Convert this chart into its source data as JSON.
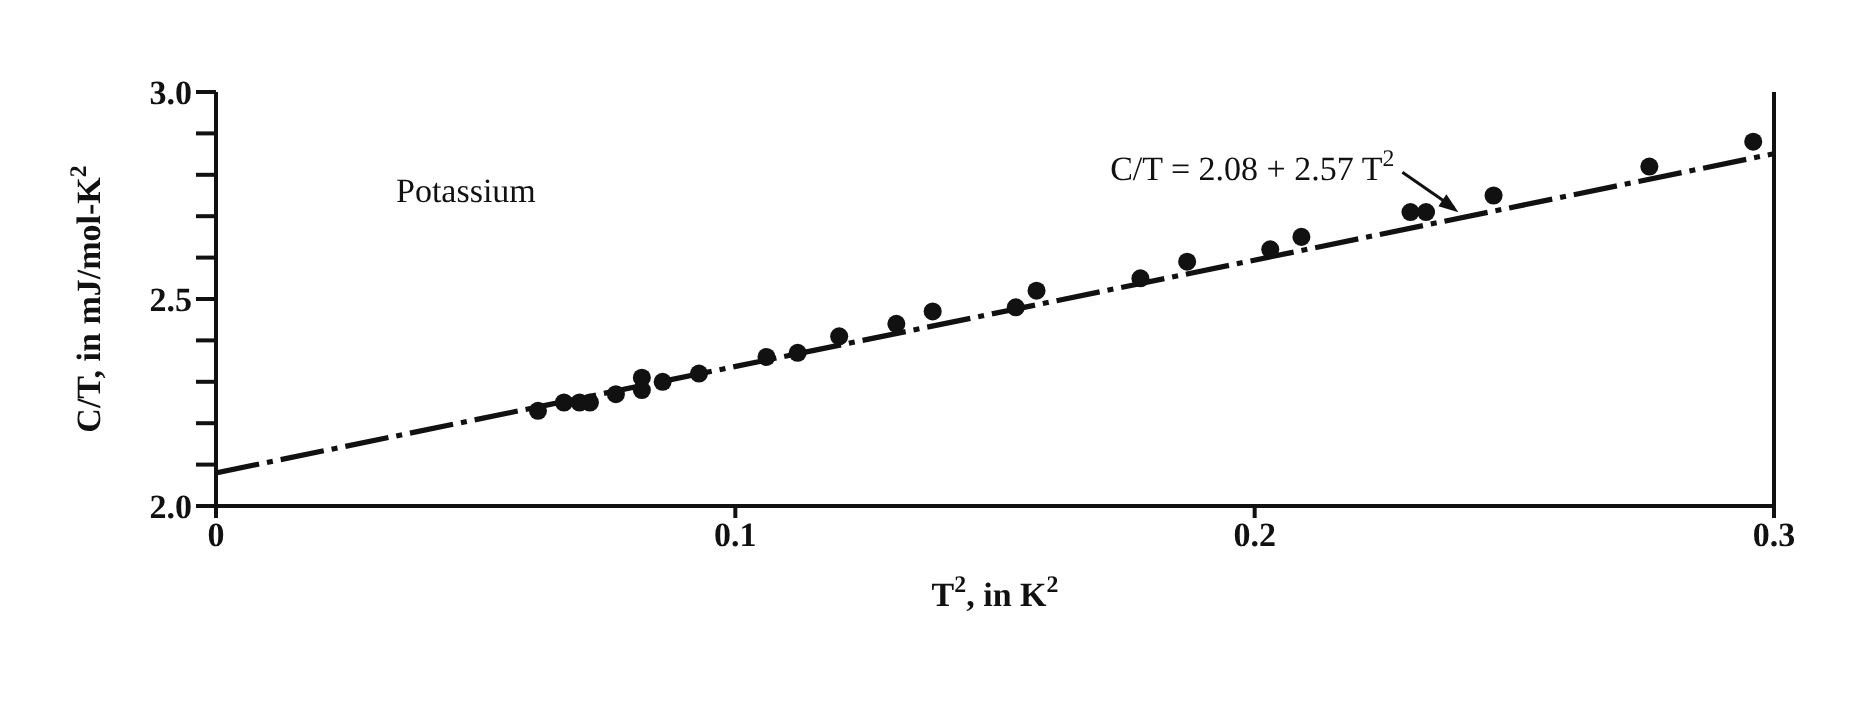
{
  "chart_data": {
    "type": "scatter",
    "xlabel": "T$^{2}$, in K$^{2}$",
    "ylabel": "C/T, in mJ/mol-K$^{2}$",
    "annotations": [
      "Potassium",
      {
        "text": "C/T = 2.08 + 2.57 T$^{2}$",
        "x": 0.24,
        "y": 2.7
      }
    ],
    "xlim": [
      0,
      0.3
    ],
    "xticks": [
      0,
      0.1,
      0.2,
      0.3
    ],
    "ylim": [
      2.0,
      3.0
    ],
    "yticks": [
      {
        "value": 2.0,
        "label": "2.0"
      },
      {
        "value": 2.1,
        "label": null
      },
      {
        "value": 2.2,
        "label": null
      },
      {
        "value": 2.3,
        "label": null
      },
      {
        "value": 2.4,
        "label": null
      },
      {
        "value": 2.5,
        "label": "2.5"
      },
      {
        "value": 2.6,
        "label": null
      },
      {
        "value": 2.7,
        "label": null
      },
      {
        "value": 2.8,
        "label": null
      },
      {
        "value": 2.9,
        "label": null
      },
      {
        "value": 3.0,
        "label": "3.0"
      }
    ],
    "series": [
      {
        "color": "#111111",
        "marker": "circle",
        "x": [
          0.062,
          0.067,
          0.07,
          0.072,
          0.077,
          0.082,
          0.082,
          0.086,
          0.093,
          0.106,
          0.112,
          0.12,
          0.131,
          0.138,
          0.154,
          0.158,
          0.178,
          0.187,
          0.203,
          0.209,
          0.23,
          0.233,
          0.246,
          0.276,
          0.296
        ],
        "values": [
          2.23,
          2.25,
          2.25,
          2.25,
          2.27,
          2.31,
          2.28,
          2.3,
          2.32,
          2.36,
          2.37,
          2.41,
          2.44,
          2.47,
          2.48,
          2.52,
          2.55,
          2.59,
          2.62,
          2.65,
          2.71,
          2.71,
          2.75,
          2.82,
          2.88
        ]
      },
      {
        "type": "line",
        "color": "#111111",
        "marker": "none",
        "line_style": "dashed",
        "x": [
          0,
          0.3
        ],
        "values": [
          2.08,
          2.851
        ]
      }
    ]
  }
}
